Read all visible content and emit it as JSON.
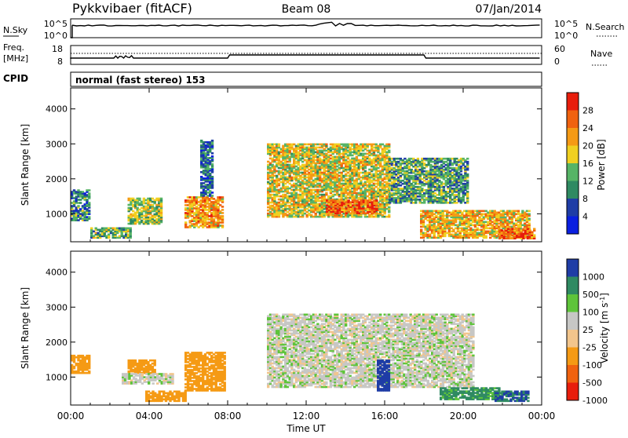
{
  "header": {
    "station": "Pykkvibaer (fitACF)",
    "beam": "Beam 08",
    "date": "07/Jan/2014"
  },
  "top_panel": {
    "left_label": "N.Sky",
    "left_ticks": [
      "10^5",
      "10^0"
    ],
    "right_label": "N.Search",
    "right_ticks": [
      "10^5",
      "10^0"
    ]
  },
  "freq_panel": {
    "left_label_1": "Freq.",
    "left_label_2": "[MHz]",
    "left_ticks": [
      "18",
      "8"
    ],
    "right_label": "Nave",
    "right_ticks": [
      "60",
      "0"
    ],
    "cpid_label": "CPID",
    "cpid_text": "normal (fast stereo) 153"
  },
  "colors": {
    "power_scale": [
      "#0a1fe0",
      "#1f3da6",
      "#2f8a62",
      "#56b466",
      "#f0d020",
      "#f59a14",
      "#f0620f",
      "#e81d0c"
    ],
    "velocity_scale": [
      "#e81d0c",
      "#f0620f",
      "#f59a14",
      "#f2c58c",
      "#c7c7c5",
      "#5ec43a",
      "#2f8a62",
      "#1f3da6"
    ]
  },
  "chart_data": [
    {
      "type": "heatmap",
      "name": "power",
      "ylabel": "Slant Range [km]",
      "ylim": [
        200,
        4600
      ],
      "yticks": [
        "1000",
        "2000",
        "3000",
        "4000"
      ],
      "xlim": [
        "00:00",
        "24:00"
      ],
      "colorbar": {
        "label": "Power [dB]",
        "ticks": [
          "4",
          "8",
          "12",
          "16",
          "20",
          "24",
          "28"
        ],
        "range": [
          0,
          32
        ]
      },
      "echo_regions": [
        {
          "t_start": 0.0,
          "t_end": 0.9,
          "r_low": 800,
          "r_high": 1700,
          "power": 10
        },
        {
          "t_start": 2.9,
          "t_end": 4.6,
          "r_low": 700,
          "r_high": 1450,
          "power": 16
        },
        {
          "t_start": 1.0,
          "t_end": 3.0,
          "r_low": 300,
          "r_high": 600,
          "power": 14
        },
        {
          "t_start": 5.8,
          "t_end": 7.7,
          "r_low": 600,
          "r_high": 1500,
          "power": 22
        },
        {
          "t_start": 6.6,
          "t_end": 7.2,
          "r_low": 1500,
          "r_high": 3100,
          "power": 8
        },
        {
          "t_start": 10.0,
          "t_end": 16.2,
          "r_low": 900,
          "r_high": 3000,
          "power": 18
        },
        {
          "t_start": 13.0,
          "t_end": 15.6,
          "r_low": 1000,
          "r_high": 1400,
          "power": 26
        },
        {
          "t_start": 16.2,
          "t_end": 20.2,
          "r_low": 1300,
          "r_high": 2600,
          "power": 12
        },
        {
          "t_start": 17.8,
          "t_end": 23.4,
          "r_low": 300,
          "r_high": 1100,
          "power": 20
        },
        {
          "t_start": 21.8,
          "t_end": 23.6,
          "r_low": 280,
          "r_high": 560,
          "power": 26
        }
      ]
    },
    {
      "type": "heatmap",
      "name": "velocity",
      "ylabel": "Slant Range [km]",
      "ylim": [
        200,
        4600
      ],
      "yticks": [
        "1000",
        "2000",
        "3000",
        "4000"
      ],
      "xlabel": "Time UT",
      "xticks": [
        "00:00",
        "04:00",
        "08:00",
        "12:00",
        "16:00",
        "20:00",
        "00:00"
      ],
      "colorbar": {
        "label": "Velocity [m s^-1]",
        "ticks": [
          "1000",
          "500",
          "100",
          "25",
          "-25",
          "-100",
          "-500",
          "-1000"
        ]
      },
      "echo_regions": [
        {
          "t_start": 0.0,
          "t_end": 0.9,
          "r_low": 1100,
          "r_high": 1600,
          "velocity": -300
        },
        {
          "t_start": 2.9,
          "t_end": 4.3,
          "r_low": 1100,
          "r_high": 1500,
          "velocity": -400
        },
        {
          "t_start": 2.6,
          "t_end": 5.2,
          "r_low": 800,
          "r_high": 1100,
          "velocity": 0
        },
        {
          "t_start": 3.8,
          "t_end": 5.8,
          "r_low": 300,
          "r_high": 600,
          "velocity": -200
        },
        {
          "t_start": 5.8,
          "t_end": 7.8,
          "r_low": 600,
          "r_high": 1700,
          "velocity": -200
        },
        {
          "t_start": 10.0,
          "t_end": 20.5,
          "r_low": 700,
          "r_high": 2800,
          "velocity": 0
        },
        {
          "t_start": 15.6,
          "t_end": 16.2,
          "r_low": 600,
          "r_high": 1500,
          "velocity": 600
        },
        {
          "t_start": 18.8,
          "t_end": 21.8,
          "r_low": 350,
          "r_high": 700,
          "velocity": 120
        },
        {
          "t_start": 21.6,
          "t_end": 23.3,
          "r_low": 300,
          "r_high": 600,
          "velocity": 500
        }
      ]
    }
  ]
}
